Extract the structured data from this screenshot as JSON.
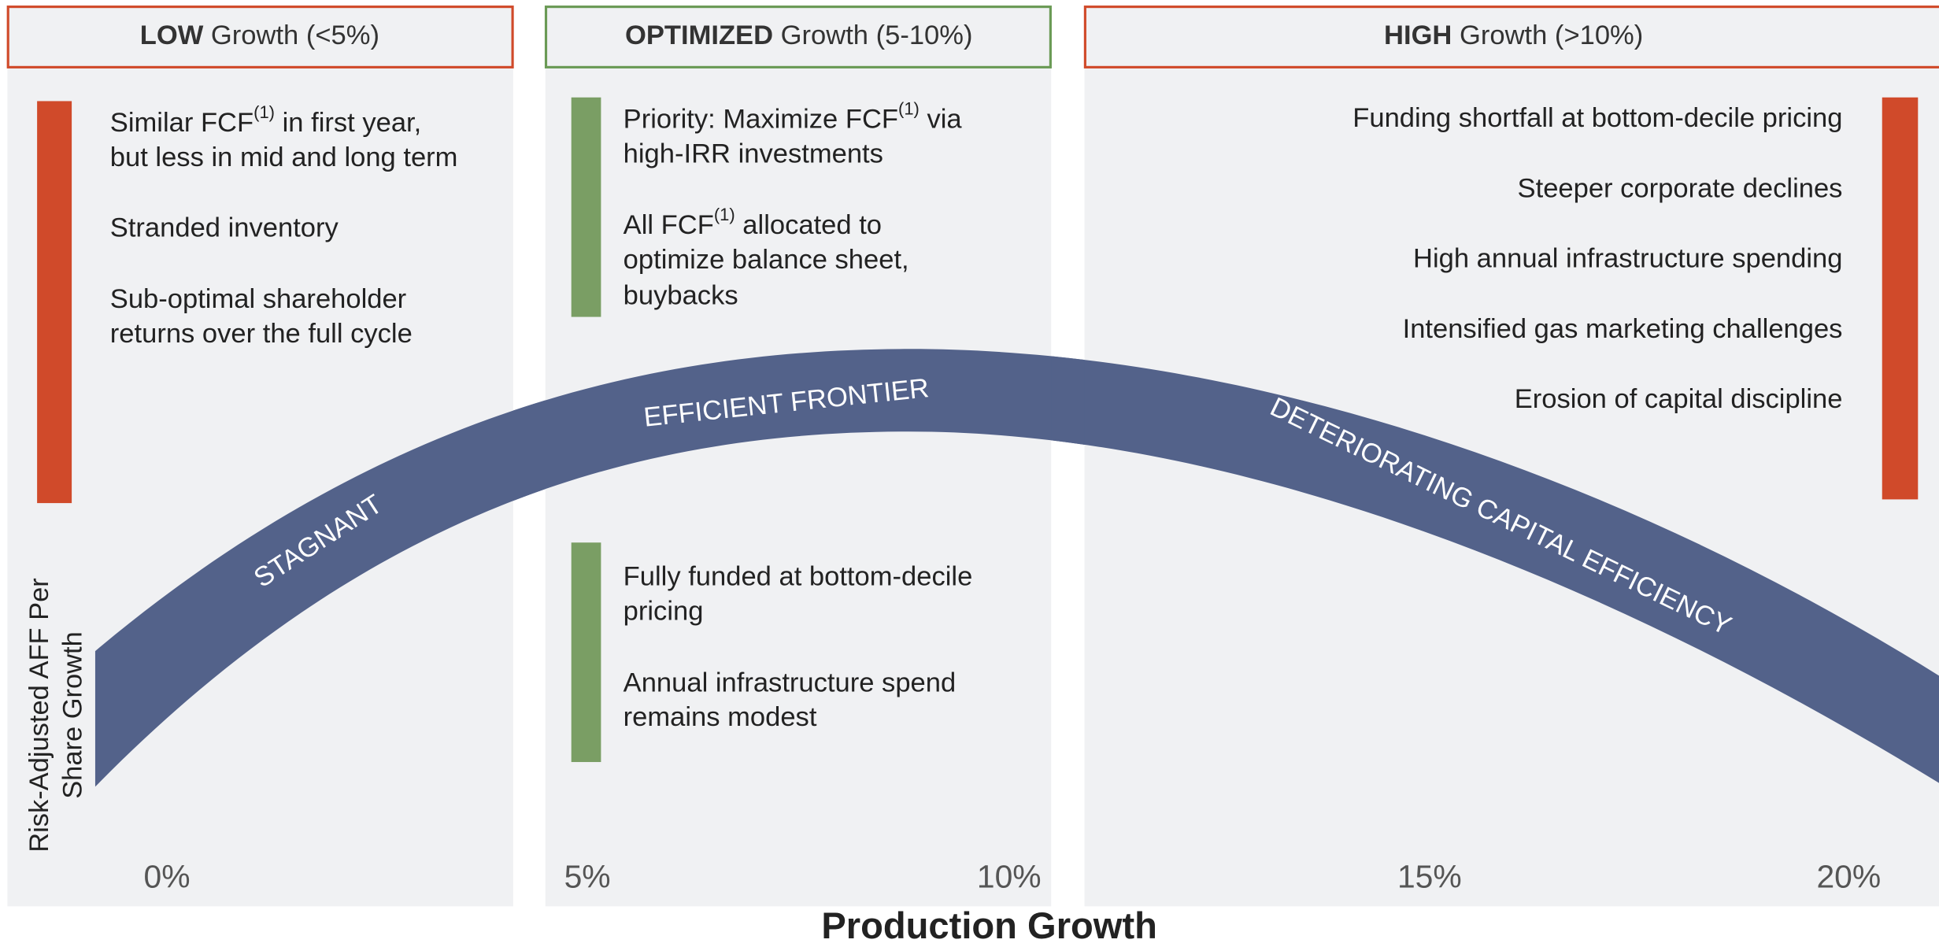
{
  "header_columns": [
    {
      "bold": "LOW",
      "rest": " Growth (<5%)"
    },
    {
      "bold": "OPTIMIZED",
      "rest": " Growth (5-10%)"
    },
    {
      "bold": "HIGH",
      "rest": " Growth (>10%)"
    }
  ],
  "low_bullets": [
    [
      [
        {
          "t": "Similar FCF"
        },
        {
          "sup": "(1)"
        },
        {
          "t": " in first year,"
        }
      ],
      [
        {
          "t": "but less in mid and long term"
        }
      ]
    ],
    [
      [
        {
          "t": "Stranded inventory"
        }
      ]
    ],
    [
      [
        {
          "t": "Sub-optimal shareholder"
        }
      ],
      [
        {
          "t": "returns over the full cycle"
        }
      ]
    ]
  ],
  "optimized_top_bullets": [
    [
      [
        {
          "t": "Priority: Maximize FCF"
        },
        {
          "sup": "(1)"
        },
        {
          "t": " via"
        }
      ],
      [
        {
          "t": "high-IRR investments"
        }
      ]
    ],
    [
      [
        {
          "t": "All FCF"
        },
        {
          "sup": "(1)"
        },
        {
          "t": " allocated to"
        }
      ],
      [
        {
          "t": "optimize balance sheet,"
        }
      ],
      [
        {
          "t": "buybacks"
        }
      ]
    ]
  ],
  "optimized_bottom_bullets": [
    [
      [
        {
          "t": "Fully funded at bottom-decile"
        }
      ],
      [
        {
          "t": "pricing"
        }
      ]
    ],
    [
      [
        {
          "t": "Annual infrastructure spend"
        }
      ],
      [
        {
          "t": "remains modest"
        }
      ]
    ]
  ],
  "high_bullets": [
    "Funding shortfall at bottom-decile pricing",
    "Steeper corporate declines",
    "High annual infrastructure spending",
    "Intensified gas marketing challenges",
    "Erosion of capital discipline"
  ],
  "arc_labels": [
    "STAGNANT",
    "EFFICIENT FRONTIER",
    "DETERIORATING CAPITAL EFFICIENCY"
  ],
  "y_axis_label": [
    "Risk-Adjusted AFF Per",
    "Share Growth"
  ],
  "x_tick_labels": [
    "0%",
    "5%",
    "10%",
    "15%",
    "20%"
  ],
  "x_axis_label": "Production Growth"
}
